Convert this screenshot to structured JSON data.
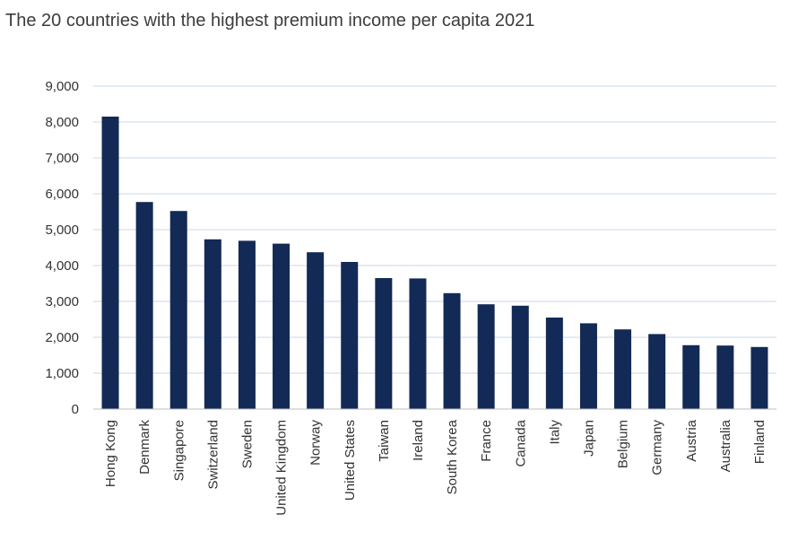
{
  "chart_data": {
    "type": "bar",
    "title": "The 20 countries with the highest premium income per capita 2021",
    "categories": [
      "Hong Kong",
      "Denmark",
      "Singapore",
      "Switzerland",
      "Sweden",
      "United Kingdom",
      "Norway",
      "United States",
      "Taiwan",
      "Ireland",
      "South Korea",
      "France",
      "Canada",
      "Italy",
      "Japan",
      "Belgium",
      "Germany",
      "Austria",
      "Australia",
      "Finland"
    ],
    "values": [
      8150,
      5770,
      5520,
      4730,
      4690,
      4610,
      4370,
      4100,
      3650,
      3640,
      3230,
      2920,
      2880,
      2550,
      2390,
      2220,
      2090,
      1780,
      1770,
      1730
    ],
    "y_ticks": [
      "0",
      "1,000",
      "2,000",
      "3,000",
      "4,000",
      "5,000",
      "6,000",
      "7,000",
      "8,000",
      "9,000"
    ],
    "ylim": [
      0,
      9000
    ],
    "grid": true,
    "bar_color": "#122a55"
  }
}
